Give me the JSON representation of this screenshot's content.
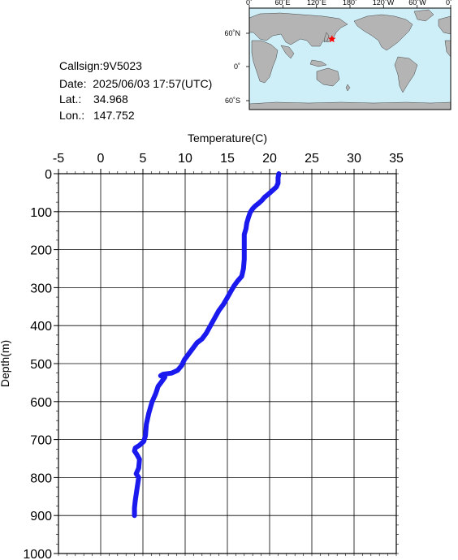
{
  "info": {
    "callsign": "Callsign:9V5023",
    "date": "Date:  2025/06/03 17:57(UTC)",
    "lat_label": "Lat.:",
    "lat_value": "34.968",
    "lon_label": "Lon.:",
    "lon_value": "147.752"
  },
  "map": {
    "top_labels": [
      "0˚",
      "60˚E",
      "120˚E",
      "180˚",
      "120˚W",
      "60˚W",
      "0˚"
    ],
    "side_labels": [
      "60˚N",
      "0˚",
      "60˚S"
    ],
    "ocean_color": "#cfeff8",
    "land_color": "#b4b4b4",
    "marker": {
      "lat": 34.968,
      "lon": 147.752,
      "color": "#ff0000",
      "icon": "star-icon"
    }
  },
  "chart_data": {
    "type": "line",
    "xlabel": "Temperature(C)",
    "ylabel": "Depth(m)",
    "xlim": [
      -5,
      35
    ],
    "ylim": [
      0,
      1000
    ],
    "x_ticks": [
      "-5",
      "0",
      "5",
      "10",
      "15",
      "20",
      "25",
      "30",
      "35"
    ],
    "y_ticks": [
      "0",
      "100",
      "200",
      "300",
      "400",
      "500",
      "600",
      "700",
      "800",
      "900",
      "1000"
    ],
    "grid": true,
    "line_color": "#1a1aee",
    "series": [
      {
        "points": [
          [
            21.1,
            0
          ],
          [
            21.0,
            10
          ],
          [
            21.0,
            25
          ],
          [
            20.8,
            35
          ],
          [
            20.3,
            45
          ],
          [
            19.8,
            55
          ],
          [
            19.4,
            62
          ],
          [
            19.1,
            70
          ],
          [
            18.7,
            78
          ],
          [
            18.3,
            85
          ],
          [
            18.0,
            92
          ],
          [
            17.7,
            102
          ],
          [
            17.5,
            115
          ],
          [
            17.3,
            130
          ],
          [
            17.2,
            145
          ],
          [
            17.0,
            160
          ],
          [
            17.0,
            180
          ],
          [
            17.0,
            200
          ],
          [
            17.0,
            225
          ],
          [
            16.9,
            250
          ],
          [
            16.7,
            270
          ],
          [
            16.2,
            283
          ],
          [
            15.8,
            295
          ],
          [
            15.4,
            310
          ],
          [
            14.9,
            330
          ],
          [
            14.5,
            345
          ],
          [
            14.0,
            360
          ],
          [
            13.5,
            380
          ],
          [
            13.0,
            400
          ],
          [
            12.5,
            420
          ],
          [
            12.0,
            435
          ],
          [
            11.4,
            445
          ],
          [
            10.9,
            460
          ],
          [
            10.4,
            475
          ],
          [
            9.9,
            490
          ],
          [
            9.6,
            505
          ],
          [
            9.1,
            518
          ],
          [
            8.4,
            525
          ],
          [
            7.4,
            528
          ],
          [
            7.1,
            532
          ],
          [
            7.6,
            536
          ],
          [
            7.2,
            548
          ],
          [
            6.8,
            560
          ],
          [
            6.5,
            580
          ],
          [
            6.1,
            600
          ],
          [
            5.7,
            630
          ],
          [
            5.4,
            660
          ],
          [
            5.3,
            690
          ],
          [
            5.1,
            705
          ],
          [
            4.6,
            715
          ],
          [
            4.1,
            722
          ],
          [
            4.0,
            730
          ],
          [
            4.3,
            740
          ],
          [
            4.6,
            752
          ],
          [
            4.5,
            775
          ],
          [
            4.2,
            790
          ],
          [
            4.5,
            800
          ],
          [
            4.3,
            830
          ],
          [
            4.1,
            860
          ],
          [
            4.0,
            880
          ],
          [
            4.0,
            900
          ]
        ]
      }
    ]
  }
}
